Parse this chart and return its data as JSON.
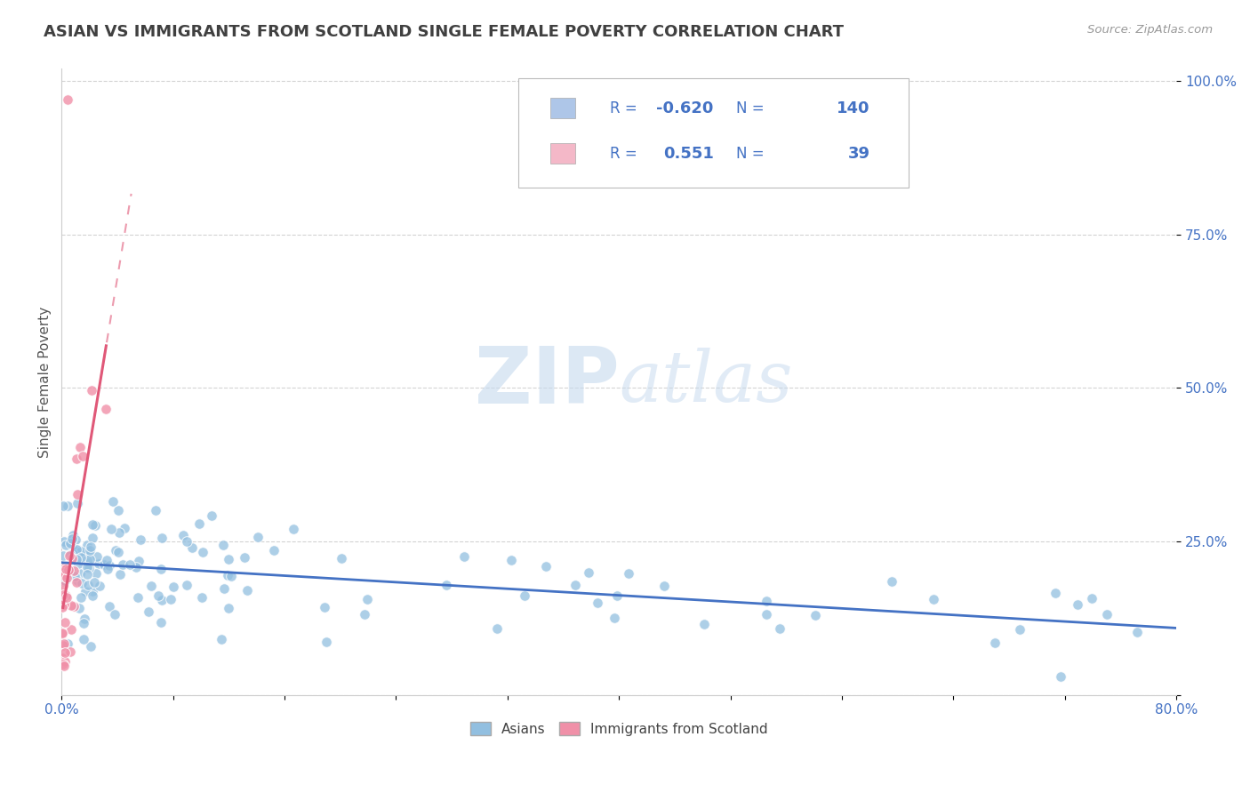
{
  "title": "ASIAN VS IMMIGRANTS FROM SCOTLAND SINGLE FEMALE POVERTY CORRELATION CHART",
  "source_text": "Source: ZipAtlas.com",
  "ylabel": "Single Female Poverty",
  "watermark": "ZIPatlas",
  "xlim": [
    0.0,
    0.8
  ],
  "ylim": [
    0.0,
    1.0
  ],
  "ytick_values": [
    0.0,
    0.25,
    0.5,
    0.75,
    1.0
  ],
  "ytick_labels": [
    "",
    "25.0%",
    "50.0%",
    "75.0%",
    "100.0%"
  ],
  "legend_entries": [
    {
      "label": "Asians",
      "R": "-0.620",
      "N": "140",
      "color": "#aec6e8"
    },
    {
      "label": "Immigrants from Scotland",
      "R": "0.551",
      "N": "39",
      "color": "#f4b8c8"
    }
  ],
  "blue_dot_color": "#92bfe0",
  "pink_dot_color": "#f090a8",
  "blue_line_color": "#4472c4",
  "pink_line_color": "#e05878",
  "title_color": "#404040",
  "axis_label_color": "#555555",
  "tick_color": "#4472c4",
  "background_color": "#ffffff",
  "grid_color": "#c8c8c8",
  "legend_text_color": "#4472c4"
}
